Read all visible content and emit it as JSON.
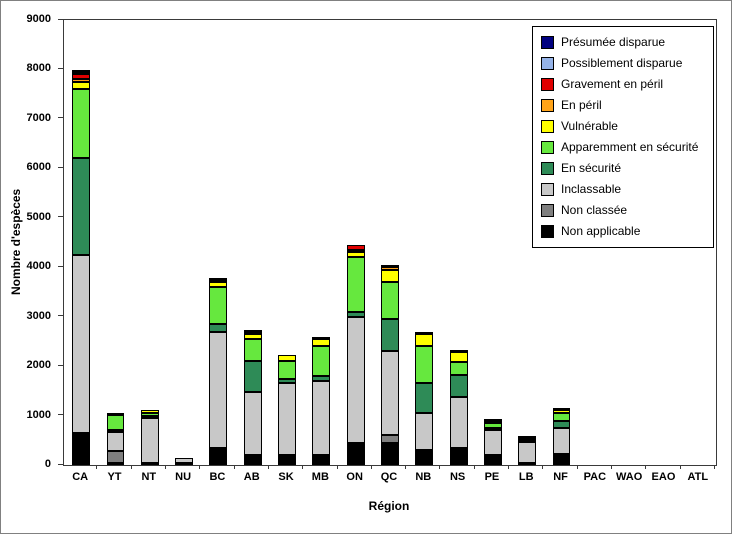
{
  "chart_data": {
    "type": "bar",
    "stacked": true,
    "title": "",
    "xlabel": "Région",
    "ylabel": "Nombre d'espèces",
    "ylim": [
      0,
      9000
    ],
    "y_ticks": [
      0,
      1000,
      2000,
      3000,
      4000,
      5000,
      6000,
      7000,
      8000,
      9000
    ],
    "grid": false,
    "legend_position": "top-right-inside",
    "legend_order_top_to_bottom": [
      "Présumée disparue",
      "Possiblement disparue",
      "Gravement en péril",
      "En péril",
      "Vulnérable",
      "Apparemment en sécurité",
      "En sécurité",
      "Inclassable",
      "Non classée",
      "Non applicable"
    ],
    "categories": [
      "CA",
      "YT",
      "NT",
      "NU",
      "BC",
      "AB",
      "SK",
      "MB",
      "ON",
      "QC",
      "NB",
      "NS",
      "PE",
      "LB",
      "NF",
      "PAC",
      "WAO",
      "EAO",
      "ATL"
    ],
    "series": [
      {
        "name": "Non applicable",
        "color": "#000000",
        "values": [
          650,
          30,
          50,
          10,
          350,
          200,
          200,
          200,
          450,
          450,
          300,
          350,
          200,
          20,
          220,
          0,
          0,
          0,
          0
        ]
      },
      {
        "name": "Non classée",
        "color": "#7F7F7F",
        "values": [
          0,
          250,
          0,
          0,
          0,
          0,
          0,
          0,
          0,
          150,
          0,
          0,
          0,
          0,
          0,
          0,
          0,
          0,
          0
        ]
      },
      {
        "name": "Inclassable",
        "color": "#C8C8C8",
        "values": [
          3600,
          370,
          900,
          110,
          2350,
          1280,
          1450,
          1500,
          2550,
          1700,
          750,
          1030,
          500,
          430,
          530,
          0,
          0,
          0,
          0
        ]
      },
      {
        "name": "En sécurité",
        "color": "#2E8B57",
        "values": [
          1950,
          50,
          30,
          0,
          150,
          620,
          100,
          100,
          100,
          650,
          600,
          450,
          30,
          30,
          150,
          0,
          0,
          0,
          0
        ]
      },
      {
        "name": "Apparemment en sécurité",
        "color": "#66E83E",
        "values": [
          1400,
          300,
          70,
          0,
          750,
          450,
          350,
          600,
          1100,
          750,
          750,
          250,
          100,
          30,
          150,
          0,
          0,
          0,
          0
        ]
      },
      {
        "name": "Vulnérable",
        "color": "#FFFF00",
        "values": [
          150,
          50,
          50,
          0,
          100,
          100,
          130,
          150,
          100,
          250,
          250,
          200,
          50,
          20,
          70,
          0,
          0,
          0,
          0
        ]
      },
      {
        "name": "En péril",
        "color": "#FFA319",
        "values": [
          60,
          0,
          0,
          0,
          20,
          50,
          0,
          0,
          50,
          50,
          0,
          0,
          0,
          0,
          0,
          0,
          0,
          0,
          0
        ]
      },
      {
        "name": "Gravement en péril",
        "color": "#E00000",
        "values": [
          100,
          0,
          0,
          0,
          30,
          20,
          0,
          10,
          100,
          20,
          30,
          30,
          20,
          0,
          10,
          0,
          0,
          0,
          0
        ]
      },
      {
        "name": "Possiblement disparue",
        "color": "#95B3E8",
        "values": [
          20,
          0,
          0,
          0,
          0,
          0,
          0,
          0,
          0,
          0,
          0,
          0,
          0,
          0,
          0,
          0,
          0,
          0,
          0
        ]
      },
      {
        "name": "Présumée disparue",
        "color": "#000080",
        "values": [
          20,
          0,
          0,
          0,
          0,
          0,
          0,
          0,
          0,
          0,
          0,
          0,
          0,
          0,
          0,
          0,
          0,
          0,
          0
        ]
      }
    ]
  }
}
